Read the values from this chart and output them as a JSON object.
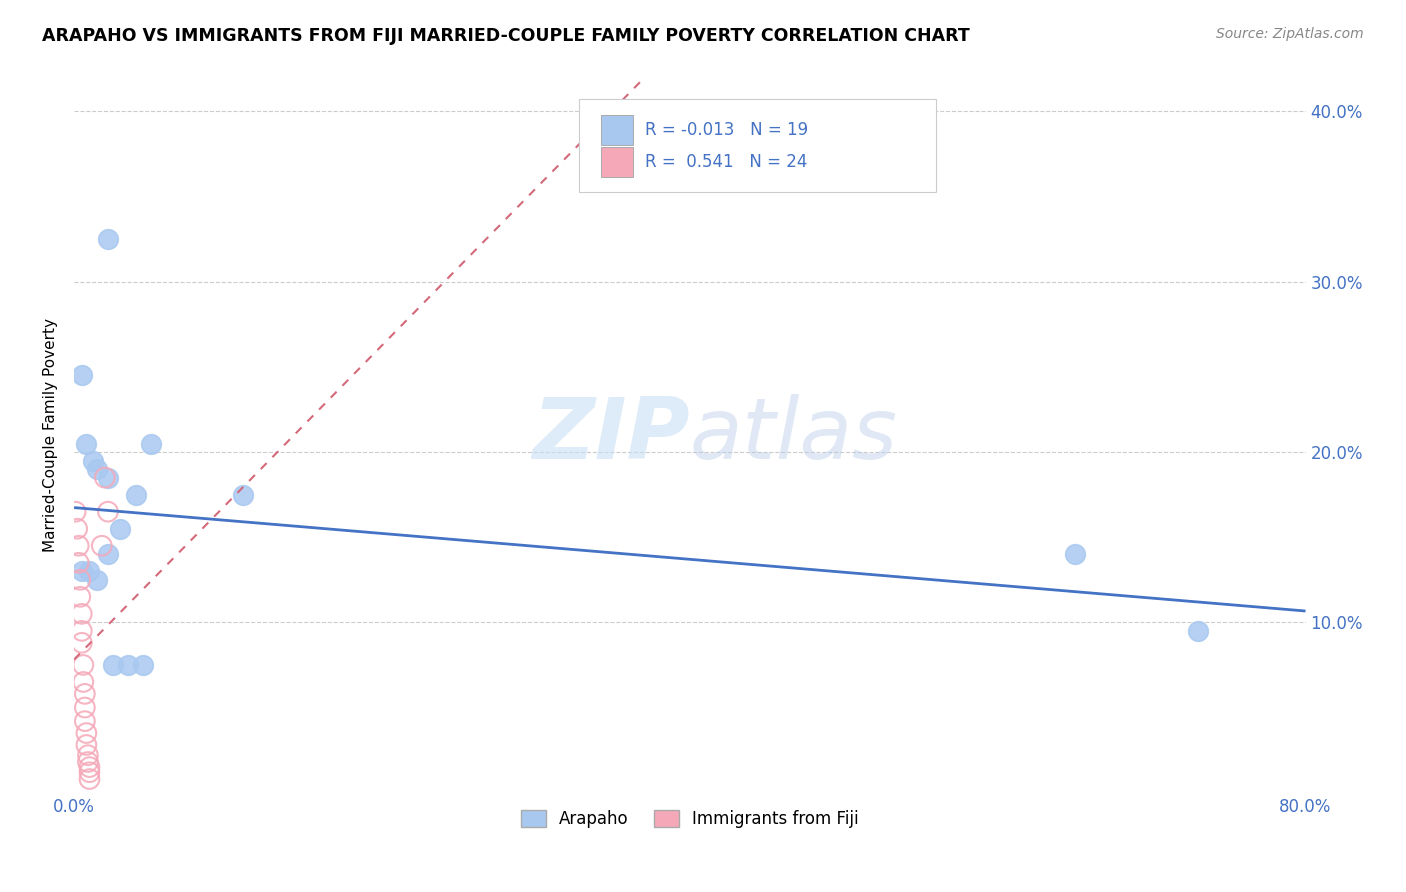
{
  "title": "ARAPAHO VS IMMIGRANTS FROM FIJI MARRIED-COUPLE FAMILY POVERTY CORRELATION CHART",
  "source": "Source: ZipAtlas.com",
  "ylabel": "Married-Couple Family Poverty",
  "r_arapaho": "-0.013",
  "n_arapaho": "19",
  "r_fiji": "0.541",
  "n_fiji": "24",
  "xlim": [
    0,
    0.8
  ],
  "ylim": [
    0,
    0.42
  ],
  "ytick_labels": [
    "10.0%",
    "20.0%",
    "30.0%",
    "40.0%"
  ],
  "ytick_pos": [
    0.1,
    0.2,
    0.3,
    0.4
  ],
  "xtick_pos": [
    0.0,
    0.1,
    0.2,
    0.3,
    0.4,
    0.5,
    0.6,
    0.7,
    0.8
  ],
  "xtick_labels": [
    "0.0%",
    "",
    "",
    "",
    "",
    "",
    "",
    "",
    "80.0%"
  ],
  "arapaho_color": "#a8c8f0",
  "fiji_color": "#f5a8b8",
  "trend_arapaho_color": "#4472c4",
  "trend_fiji_color": "#d4697a",
  "arapaho_scatter": [
    [
      0.022,
      0.325
    ],
    [
      0.005,
      0.245
    ],
    [
      0.008,
      0.205
    ],
    [
      0.012,
      0.195
    ],
    [
      0.015,
      0.19
    ],
    [
      0.022,
      0.185
    ],
    [
      0.04,
      0.175
    ],
    [
      0.03,
      0.155
    ],
    [
      0.005,
      0.13
    ],
    [
      0.01,
      0.13
    ],
    [
      0.015,
      0.125
    ],
    [
      0.022,
      0.14
    ],
    [
      0.025,
      0.075
    ],
    [
      0.035,
      0.075
    ],
    [
      0.045,
      0.075
    ],
    [
      0.05,
      0.205
    ],
    [
      0.11,
      0.175
    ],
    [
      0.65,
      0.14
    ],
    [
      0.73,
      0.095
    ]
  ],
  "fiji_scatter": [
    [
      0.001,
      0.165
    ],
    [
      0.002,
      0.155
    ],
    [
      0.003,
      0.145
    ],
    [
      0.003,
      0.135
    ],
    [
      0.004,
      0.125
    ],
    [
      0.004,
      0.115
    ],
    [
      0.005,
      0.105
    ],
    [
      0.005,
      0.095
    ],
    [
      0.005,
      0.088
    ],
    [
      0.006,
      0.075
    ],
    [
      0.006,
      0.065
    ],
    [
      0.007,
      0.058
    ],
    [
      0.007,
      0.05
    ],
    [
      0.007,
      0.042
    ],
    [
      0.008,
      0.035
    ],
    [
      0.008,
      0.028
    ],
    [
      0.009,
      0.022
    ],
    [
      0.009,
      0.018
    ],
    [
      0.01,
      0.015
    ],
    [
      0.01,
      0.012
    ],
    [
      0.01,
      0.008
    ],
    [
      0.02,
      0.185
    ],
    [
      0.022,
      0.165
    ],
    [
      0.018,
      0.145
    ]
  ],
  "watermark_zip": "ZIP",
  "watermark_atlas": "atlas",
  "legend_label_arapaho": "Arapaho",
  "legend_label_fiji": "Immigrants from Fiji"
}
